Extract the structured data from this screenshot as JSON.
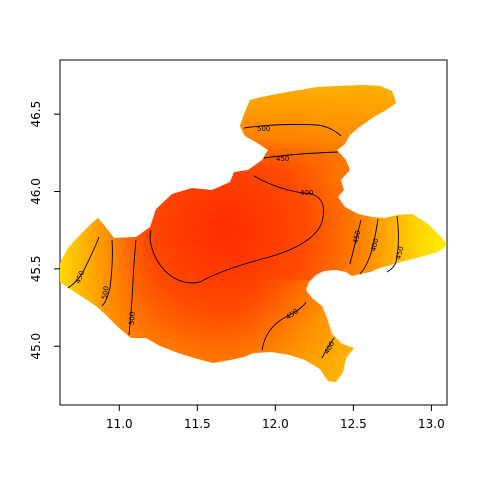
{
  "chart_data": {
    "type": "heatmap",
    "title": "",
    "xlabel": "",
    "ylabel": "",
    "xlim": [
      10.62,
      13.1
    ],
    "ylim": [
      44.62,
      46.85
    ],
    "x_ticks": [
      {
        "value": 11.0,
        "label": "11.0"
      },
      {
        "value": 11.5,
        "label": "11.5"
      },
      {
        "value": 12.0,
        "label": "12.0"
      },
      {
        "value": 12.5,
        "label": "12.5"
      },
      {
        "value": 13.0,
        "label": "13.0"
      }
    ],
    "y_ticks": [
      {
        "value": 45.0,
        "label": "45.0"
      },
      {
        "value": 45.5,
        "label": "45.5"
      },
      {
        "value": 46.0,
        "label": "46.0"
      },
      {
        "value": 46.5,
        "label": "46.5"
      }
    ],
    "grid": false,
    "colormap": [
      "#ff2a00",
      "#ff6200",
      "#ff9900",
      "#ffcc00",
      "#ffee00"
    ],
    "contour_levels": [
      {
        "label": "500",
        "value": 500
      },
      {
        "label": "450",
        "value": 450
      },
      {
        "label": "400",
        "value": 400
      },
      {
        "label": "450",
        "value": 450
      },
      {
        "label": "400",
        "value": 400
      },
      {
        "label": "450",
        "value": 450
      },
      {
        "label": "500",
        "value": 500
      },
      {
        "label": "500",
        "value": 500
      },
      {
        "label": "450",
        "value": 450
      },
      {
        "label": "400",
        "value": 400
      },
      {
        "label": "450",
        "value": 450
      },
      {
        "label": "400",
        "value": 400
      }
    ]
  }
}
